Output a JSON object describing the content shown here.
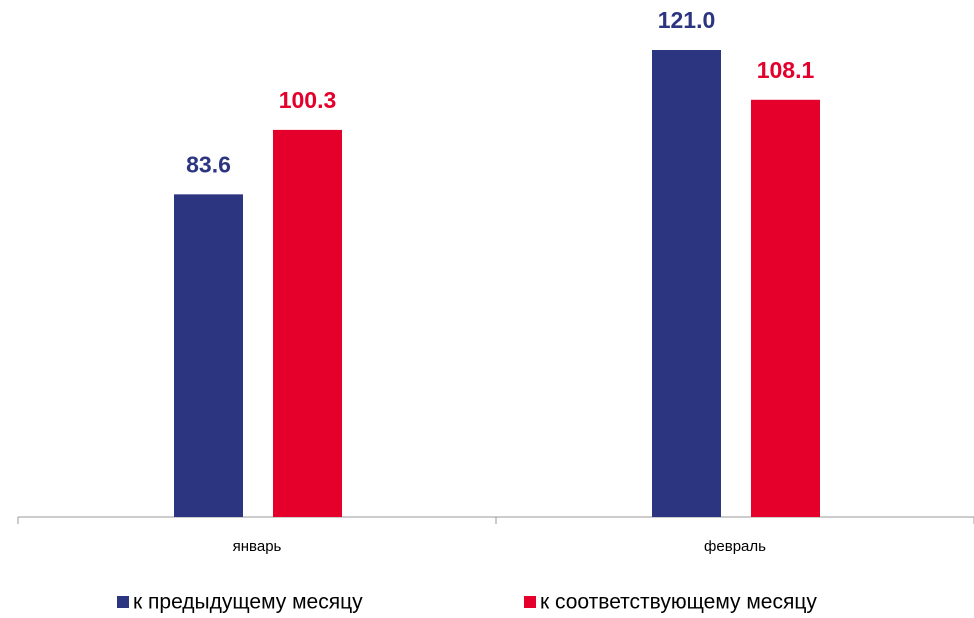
{
  "chart_data": {
    "type": "bar",
    "categories": [
      "январь",
      "февраль"
    ],
    "series": [
      {
        "name": "к предыдущему месяцу",
        "color": "#2b3580",
        "values": [
          83.6,
          121.0
        ],
        "value_labels": [
          "83.6",
          "121.0"
        ]
      },
      {
        "name": "к соответствующему месяцу",
        "color": "#e4002b",
        "values": [
          100.3,
          108.1
        ],
        "value_labels": [
          "100.3",
          "108.1"
        ]
      }
    ]
  }
}
